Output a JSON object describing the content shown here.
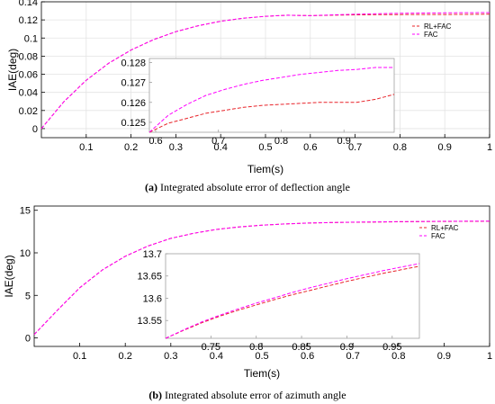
{
  "captions": [
    {
      "tag": "(a)",
      "text": "Integrated absolute error of deflection angle"
    },
    {
      "tag": "(b)",
      "text": "Integrated absolute error of azimuth angle"
    }
  ],
  "colors": {
    "rl_fac": "#e8242a",
    "fac": "#ff00ff",
    "axis": "#000000",
    "grid": "#e3e3e3",
    "box": "#a0a0a0"
  },
  "chart_data": [
    {
      "id": "a",
      "type": "line",
      "xlabel": "Tiem(s)",
      "ylabel": "IAE(deg)",
      "xlim": [
        0,
        1
      ],
      "ylim": [
        -0.01,
        0.14
      ],
      "xticks": [
        0.1,
        0.2,
        0.3,
        0.4,
        0.5,
        0.6,
        0.7,
        0.8,
        0.9,
        1
      ],
      "yticks": [
        0,
        0.02,
        0.04,
        0.06,
        0.08,
        0.1,
        0.12,
        0.14
      ],
      "xtick_labels": [
        "0.1",
        "0.2",
        "0.3",
        "0.4",
        "0.5",
        "0.6",
        "0.7",
        "0.8",
        "0.9",
        "1"
      ],
      "ytick_labels": [
        "0",
        "0.02",
        "0.04",
        "0.06",
        "0.08",
        "0.1",
        "0.12",
        "0.14"
      ],
      "grid": true,
      "legend_position": "top-right",
      "series": [
        {
          "name": "RL+FAC",
          "style": "dashed",
          "x": [
            0,
            0.05,
            0.1,
            0.15,
            0.2,
            0.25,
            0.3,
            0.35,
            0.4,
            0.45,
            0.5,
            0.55,
            0.6,
            0.65,
            0.7,
            0.75,
            0.8,
            0.85,
            0.9,
            0.95,
            1.0
          ],
          "y": [
            0,
            0.0296,
            0.0534,
            0.0722,
            0.0868,
            0.0982,
            0.107,
            0.1136,
            0.1185,
            0.1218,
            0.124,
            0.1252,
            0.1247,
            0.1252,
            0.1256,
            0.1258,
            0.1259,
            0.126,
            0.126,
            0.1261,
            0.1264
          ]
        },
        {
          "name": "FAC",
          "style": "dashed",
          "x": [
            0,
            0.05,
            0.1,
            0.15,
            0.2,
            0.25,
            0.3,
            0.35,
            0.4,
            0.45,
            0.5,
            0.55,
            0.6,
            0.65,
            0.7,
            0.75,
            0.8,
            0.85,
            0.9,
            0.95,
            1.0
          ],
          "y": [
            0,
            0.0296,
            0.0534,
            0.0722,
            0.0868,
            0.0982,
            0.107,
            0.1136,
            0.1185,
            0.1218,
            0.124,
            0.1252,
            0.1247,
            0.1256,
            0.1263,
            0.1269,
            0.1273,
            0.1276,
            0.1278,
            0.128,
            0.1281
          ]
        }
      ],
      "inset": {
        "xlim": [
          0.59,
          0.98
        ],
        "ylim": [
          0.1245,
          0.1282
        ],
        "xticks": [
          0.6,
          0.7,
          0.8,
          0.9
        ],
        "yticks": [
          0.125,
          0.126,
          0.127,
          0.128
        ],
        "xtick_labels": [
          "0.6",
          "0.7",
          "0.8",
          "0.9"
        ],
        "ytick_labels": [
          "0.125",
          "0.126",
          "0.127",
          "0.128"
        ],
        "series": [
          {
            "name": "RL+FAC",
            "x": [
              0.59,
              0.62,
              0.65,
              0.68,
              0.71,
              0.74,
              0.77,
              0.8,
              0.83,
              0.86,
              0.89,
              0.92,
              0.95,
              0.98
            ],
            "y": [
              0.1245,
              0.12495,
              0.1252,
              0.12545,
              0.1256,
              0.12575,
              0.12585,
              0.1259,
              0.12595,
              0.126,
              0.126,
              0.126,
              0.12615,
              0.1264
            ]
          },
          {
            "name": "FAC",
            "x": [
              0.59,
              0.62,
              0.65,
              0.68,
              0.71,
              0.74,
              0.77,
              0.8,
              0.83,
              0.86,
              0.89,
              0.92,
              0.95,
              0.98
            ],
            "y": [
              0.1245,
              0.12535,
              0.1259,
              0.12635,
              0.12665,
              0.1269,
              0.1271,
              0.12725,
              0.1274,
              0.1275,
              0.1276,
              0.12765,
              0.12775,
              0.12775
            ]
          }
        ]
      }
    },
    {
      "id": "b",
      "type": "line",
      "xlabel": "Tiem(s)",
      "ylabel": "IAE(deg)",
      "xlim": [
        0,
        1
      ],
      "ylim": [
        -1,
        15.5
      ],
      "xticks": [
        0.1,
        0.2,
        0.3,
        0.4,
        0.5,
        0.6,
        0.7,
        0.8,
        0.9,
        1
      ],
      "yticks": [
        0,
        5,
        10,
        15
      ],
      "xtick_labels": [
        "0.1",
        "0.2",
        "0.3",
        "0.4",
        "0.5",
        "0.6",
        "0.7",
        "0.8",
        "0.9",
        "1"
      ],
      "ytick_labels": [
        "0",
        "5",
        "10",
        "15"
      ],
      "grid": false,
      "legend_position": "top-right",
      "series": [
        {
          "name": "RL+FAC",
          "style": "dashed",
          "x": [
            0,
            0.05,
            0.1,
            0.15,
            0.2,
            0.25,
            0.3,
            0.35,
            0.4,
            0.45,
            0.5,
            0.55,
            0.6,
            0.65,
            0.7,
            0.75,
            0.8,
            0.85,
            0.9,
            0.95,
            1.0
          ],
          "y": [
            0.4,
            3.2,
            5.9,
            8.0,
            9.6,
            10.8,
            11.7,
            12.3,
            12.75,
            13.05,
            13.25,
            13.4,
            13.5,
            13.55,
            13.6,
            13.62,
            13.65,
            13.67,
            13.69,
            13.7,
            13.71
          ]
        },
        {
          "name": "FAC",
          "style": "dashed",
          "x": [
            0,
            0.05,
            0.1,
            0.15,
            0.2,
            0.25,
            0.3,
            0.35,
            0.4,
            0.45,
            0.5,
            0.55,
            0.6,
            0.65,
            0.7,
            0.75,
            0.8,
            0.85,
            0.9,
            0.95,
            1.0
          ],
          "y": [
            0.4,
            3.2,
            5.9,
            8.0,
            9.6,
            10.8,
            11.7,
            12.3,
            12.75,
            13.05,
            13.25,
            13.4,
            13.5,
            13.56,
            13.61,
            13.64,
            13.67,
            13.69,
            13.71,
            13.72,
            13.73
          ]
        }
      ],
      "inset": {
        "xlim": [
          0.7,
          0.98
        ],
        "ylim": [
          13.51,
          13.7
        ],
        "xticks": [
          0.75,
          0.8,
          0.85,
          0.9,
          0.95
        ],
        "yticks": [
          13.55,
          13.6,
          13.65,
          13.7
        ],
        "xtick_labels": [
          "0.75",
          "0.8",
          "0.85",
          "0.9",
          "0.95"
        ],
        "ytick_labels": [
          "13.55",
          "13.6",
          "13.65",
          "13.7"
        ],
        "series": [
          {
            "name": "RL+FAC",
            "x": [
              0.7,
              0.72,
              0.74,
              0.76,
              0.78,
              0.8,
              0.82,
              0.84,
              0.86,
              0.88,
              0.9,
              0.92,
              0.94,
              0.96,
              0.98
            ],
            "y": [
              13.51,
              13.528,
              13.545,
              13.56,
              13.573,
              13.585,
              13.597,
              13.608,
              13.618,
              13.628,
              13.638,
              13.647,
              13.656,
              13.664,
              13.672
            ]
          },
          {
            "name": "FAC",
            "x": [
              0.7,
              0.72,
              0.74,
              0.76,
              0.78,
              0.8,
              0.82,
              0.84,
              0.86,
              0.88,
              0.9,
              0.92,
              0.94,
              0.96,
              0.98
            ],
            "y": [
              13.51,
              13.529,
              13.547,
              13.562,
              13.576,
              13.589,
              13.601,
              13.613,
              13.624,
              13.634,
              13.644,
              13.653,
              13.662,
              13.67,
              13.678
            ]
          }
        ]
      }
    }
  ]
}
